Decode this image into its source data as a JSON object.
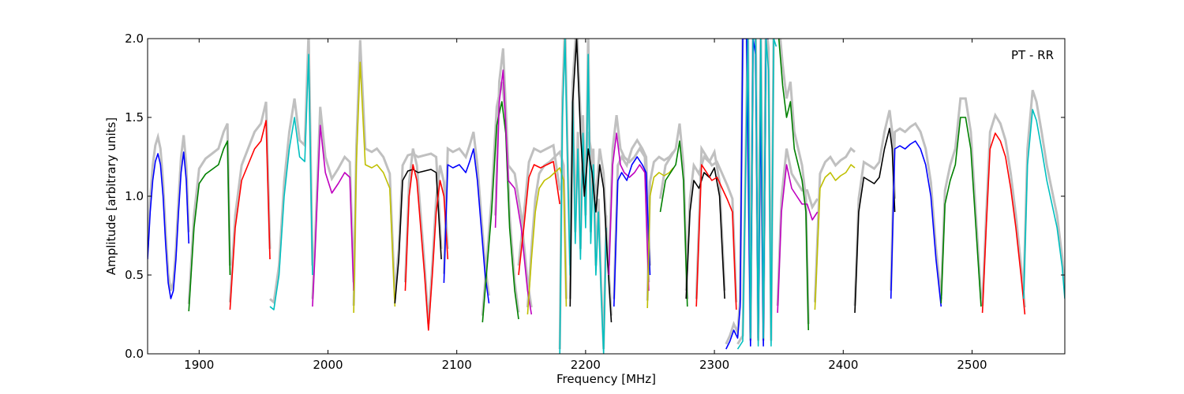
{
  "chart_data": {
    "type": "line",
    "annotation": "PT - RR",
    "xlabel": "Frequency [MHz]",
    "ylabel": "Amplitude [arbitrary units]",
    "xlim": [
      1860,
      2572
    ],
    "ylim": [
      0.0,
      2.0
    ],
    "xticks": [
      1900,
      2000,
      2100,
      2200,
      2300,
      2400,
      2500
    ],
    "yticks": [
      0.0,
      0.5,
      1.0,
      1.5,
      2.0
    ],
    "grid": false,
    "legend": "none",
    "background_color": "#c0c0c0",
    "series": [
      {
        "color": "#0000ff",
        "x": [
          1860,
          1862,
          1864,
          1866,
          1868,
          1870,
          1872,
          1874,
          1876,
          1878,
          1880,
          1882,
          1884,
          1886,
          1888,
          1890,
          1892
        ],
        "y": [
          0.6,
          0.9,
          1.1,
          1.22,
          1.27,
          1.2,
          1.0,
          0.7,
          0.45,
          0.35,
          0.4,
          0.6,
          0.9,
          1.15,
          1.28,
          1.1,
          0.7
        ]
      },
      {
        "color": "#008000",
        "x": [
          1892,
          1896,
          1900,
          1905,
          1910,
          1915,
          1919,
          1922,
          1924
        ],
        "y": [
          0.27,
          0.8,
          1.08,
          1.14,
          1.17,
          1.2,
          1.3,
          1.35,
          0.5
        ]
      },
      {
        "color": "#ff0000",
        "x": [
          1924,
          1928,
          1933,
          1938,
          1943,
          1948,
          1952,
          1955
        ],
        "y": [
          0.28,
          0.8,
          1.1,
          1.2,
          1.3,
          1.35,
          1.48,
          0.6
        ]
      },
      {
        "color": "#00bfbf",
        "x": [
          1955,
          1958,
          1962,
          1966,
          1970,
          1974,
          1978,
          1982,
          1985,
          1988
        ],
        "y": [
          0.3,
          0.28,
          0.5,
          1.0,
          1.3,
          1.5,
          1.25,
          1.22,
          1.9,
          0.5
        ]
      },
      {
        "color": "#bf00bf",
        "x": [
          1988,
          1990,
          1994,
          1998,
          2003,
          2008,
          2013,
          2017,
          2020
        ],
        "y": [
          0.3,
          0.65,
          1.45,
          1.15,
          1.02,
          1.08,
          1.15,
          1.12,
          0.4
        ]
      },
      {
        "color": "#bfbf00",
        "x": [
          2020,
          2022,
          2025,
          2029,
          2034,
          2038,
          2043,
          2048,
          2052
        ],
        "y": [
          0.26,
          1.2,
          1.85,
          1.2,
          1.18,
          1.2,
          1.15,
          1.05,
          0.3
        ]
      },
      {
        "color": "#000000",
        "x": [
          2052,
          2055,
          2058,
          2062,
          2066,
          2070,
          2075,
          2080,
          2084,
          2088
        ],
        "y": [
          0.32,
          0.6,
          1.1,
          1.16,
          1.17,
          1.15,
          1.16,
          1.17,
          1.15,
          0.6
        ]
      },
      {
        "color": "#ff0000",
        "x": [
          2060,
          2063,
          2066,
          2069,
          2072,
          2075,
          2078,
          2081,
          2084,
          2087,
          2090,
          2093
        ],
        "y": [
          0.4,
          1.0,
          1.2,
          1.1,
          0.8,
          0.5,
          0.15,
          0.5,
          0.9,
          1.1,
          1.0,
          0.6
        ]
      },
      {
        "color": "#0000ff",
        "x": [
          2090,
          2093,
          2097,
          2102,
          2107,
          2110,
          2113,
          2116,
          2119,
          2122,
          2125
        ],
        "y": [
          0.45,
          1.2,
          1.18,
          1.2,
          1.15,
          1.22,
          1.3,
          1.1,
          0.8,
          0.5,
          0.32
        ]
      },
      {
        "color": "#008000",
        "x": [
          2120,
          2123,
          2127,
          2131,
          2135,
          2138,
          2141,
          2145,
          2148
        ],
        "y": [
          0.2,
          0.5,
          0.9,
          1.45,
          1.6,
          1.4,
          0.8,
          0.4,
          0.22
        ]
      },
      {
        "color": "#bf00bf",
        "x": [
          2130,
          2133,
          2136,
          2140,
          2145,
          2150,
          2155,
          2158
        ],
        "y": [
          0.8,
          1.6,
          1.8,
          1.1,
          1.05,
          0.8,
          0.4,
          0.25
        ]
      },
      {
        "color": "#ff0000",
        "x": [
          2148,
          2152,
          2156,
          2160,
          2165,
          2170,
          2175,
          2180
        ],
        "y": [
          0.5,
          0.8,
          1.12,
          1.2,
          1.18,
          1.2,
          1.22,
          0.95
        ]
      },
      {
        "color": "#bfbf00",
        "x": [
          2155,
          2158,
          2161,
          2164,
          2168,
          2172,
          2176,
          2180,
          2183,
          2185
        ],
        "y": [
          0.25,
          0.6,
          0.9,
          1.05,
          1.1,
          1.12,
          1.15,
          1.18,
          1.1,
          0.3
        ]
      },
      {
        "color": "#00bfbf",
        "x": [
          2180,
          2182,
          2184,
          2186,
          2188,
          2190,
          2192,
          2194,
          2196,
          2198,
          2200,
          2202,
          2204,
          2206,
          2208,
          2210,
          2212,
          2214,
          2216
        ],
        "y": [
          0.0,
          1.5,
          2.0,
          1.2,
          0.5,
          1.6,
          0.7,
          1.3,
          0.6,
          1.4,
          0.8,
          1.9,
          0.7,
          1.2,
          0.5,
          0.9,
          0.4,
          0.0,
          0.8
        ]
      },
      {
        "color": "#000000",
        "x": [
          2188,
          2190,
          2193,
          2196,
          2199,
          2202,
          2205,
          2208,
          2211,
          2214,
          2217,
          2220
        ],
        "y": [
          0.3,
          1.6,
          2.0,
          1.4,
          1.0,
          1.3,
          1.15,
          0.9,
          1.2,
          1.05,
          0.6,
          0.2
        ]
      },
      {
        "color": "#bf00bf",
        "x": [
          2218,
          2221,
          2224,
          2227,
          2230,
          2234,
          2238,
          2242,
          2246,
          2249
        ],
        "y": [
          0.5,
          1.2,
          1.4,
          1.2,
          1.15,
          1.12,
          1.15,
          1.2,
          1.15,
          0.4
        ]
      },
      {
        "color": "#0000ff",
        "x": [
          2222,
          2225,
          2228,
          2232,
          2236,
          2240,
          2244,
          2247,
          2250
        ],
        "y": [
          0.3,
          1.1,
          1.15,
          1.1,
          1.2,
          1.25,
          1.2,
          1.15,
          0.5
        ]
      },
      {
        "color": "#bfbf00",
        "x": [
          2248,
          2250,
          2253,
          2257,
          2261,
          2265,
          2268
        ],
        "y": [
          0.29,
          1.0,
          1.12,
          1.15,
          1.13,
          1.15,
          1.18
        ]
      },
      {
        "color": "#008000",
        "x": [
          2258,
          2262,
          2266,
          2270,
          2273,
          2276,
          2279
        ],
        "y": [
          0.9,
          1.1,
          1.15,
          1.2,
          1.35,
          1.1,
          0.3
        ]
      },
      {
        "color": "#000000",
        "x": [
          2278,
          2281,
          2284,
          2288,
          2292,
          2296,
          2300,
          2304,
          2308
        ],
        "y": [
          0.35,
          0.9,
          1.1,
          1.05,
          1.15,
          1.12,
          1.18,
          1.0,
          0.35
        ]
      },
      {
        "color": "#ff0000",
        "x": [
          2286,
          2290,
          2294,
          2298,
          2302,
          2306,
          2310,
          2314,
          2317
        ],
        "y": [
          0.3,
          1.2,
          1.15,
          1.1,
          1.12,
          1.05,
          0.98,
          0.9,
          0.28
        ]
      },
      {
        "color": "#0000ff",
        "x": [
          2309,
          2312,
          2315,
          2318,
          2320,
          2322,
          2325,
          2328,
          2330,
          2332,
          2334,
          2336,
          2338,
          2340,
          2342
        ],
        "y": [
          0.03,
          0.08,
          0.15,
          0.1,
          0.3,
          2.0,
          2.0,
          0.05,
          2.0,
          1.9,
          0.1,
          1.6,
          0.05,
          2.0,
          2.0
        ]
      },
      {
        "color": "#00bfbf",
        "x": [
          2318,
          2322,
          2326,
          2328,
          2330,
          2332,
          2334,
          2336,
          2338,
          2340,
          2342,
          2344,
          2346,
          2348
        ],
        "y": [
          0.03,
          0.08,
          2.0,
          0.1,
          2.0,
          2.0,
          0.05,
          2.0,
          0.1,
          2.0,
          1.8,
          0.05,
          2.0,
          1.95
        ]
      },
      {
        "color": "#bf00bf",
        "x": [
          2349,
          2352,
          2356,
          2360,
          2364,
          2368,
          2372,
          2376,
          2380
        ],
        "y": [
          0.26,
          0.9,
          1.2,
          1.05,
          1.0,
          0.95,
          0.95,
          0.85,
          0.9
        ]
      },
      {
        "color": "#008000",
        "x": [
          2350,
          2353,
          2356,
          2359,
          2362,
          2365,
          2368,
          2371,
          2373
        ],
        "y": [
          2.0,
          1.7,
          1.5,
          1.6,
          1.3,
          1.2,
          1.1,
          0.9,
          0.15
        ]
      },
      {
        "color": "#bfbf00",
        "x": [
          2378,
          2382,
          2386,
          2390,
          2394,
          2398,
          2402,
          2406,
          2409
        ],
        "y": [
          0.28,
          1.05,
          1.12,
          1.15,
          1.1,
          1.13,
          1.15,
          1.2,
          1.18
        ]
      },
      {
        "color": "#000000",
        "x": [
          2409,
          2412,
          2416,
          2420,
          2424,
          2428,
          2432,
          2436,
          2438,
          2440
        ],
        "y": [
          0.26,
          0.9,
          1.12,
          1.1,
          1.08,
          1.12,
          1.3,
          1.43,
          1.3,
          0.9
        ]
      },
      {
        "color": "#0000ff",
        "x": [
          2437,
          2440,
          2444,
          2448,
          2452,
          2456,
          2460,
          2464,
          2468,
          2472,
          2476
        ],
        "y": [
          0.35,
          1.3,
          1.32,
          1.3,
          1.33,
          1.35,
          1.3,
          1.2,
          1.0,
          0.6,
          0.3
        ]
      },
      {
        "color": "#008000",
        "x": [
          2476,
          2479,
          2483,
          2487,
          2491,
          2495,
          2499,
          2503,
          2507
        ],
        "y": [
          0.32,
          0.95,
          1.1,
          1.2,
          1.5,
          1.5,
          1.3,
          0.8,
          0.3
        ]
      },
      {
        "color": "#ff0000",
        "x": [
          2508,
          2511,
          2514,
          2518,
          2522,
          2526,
          2530,
          2534,
          2538,
          2541
        ],
        "y": [
          0.26,
          0.8,
          1.3,
          1.4,
          1.35,
          1.25,
          1.05,
          0.8,
          0.5,
          0.25
        ]
      },
      {
        "color": "#00bfbf",
        "x": [
          2540,
          2543,
          2547,
          2550,
          2554,
          2558,
          2562,
          2566,
          2570,
          2572
        ],
        "y": [
          0.35,
          1.2,
          1.55,
          1.48,
          1.3,
          1.1,
          0.95,
          0.8,
          0.55,
          0.35
        ]
      }
    ]
  }
}
